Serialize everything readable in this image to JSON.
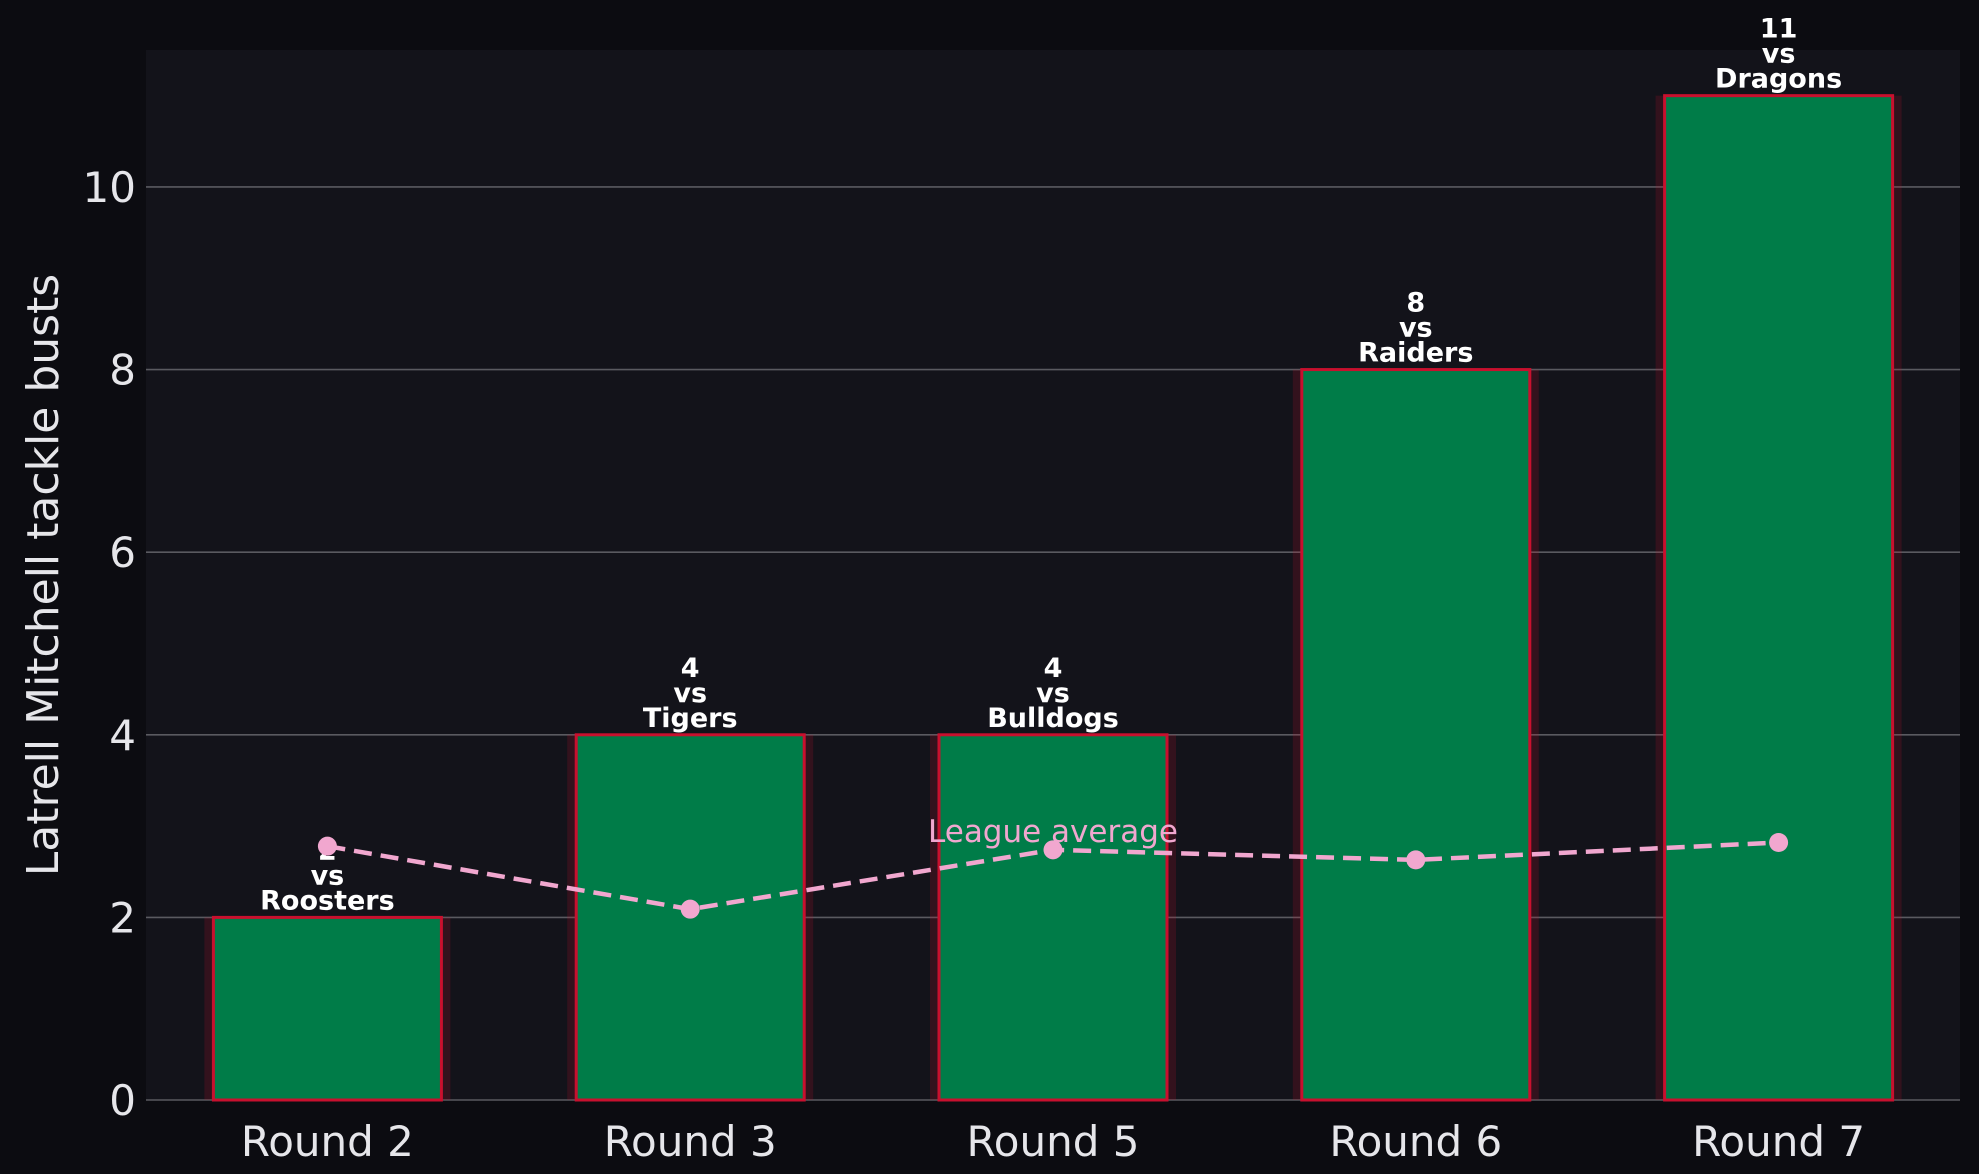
{
  "chart_data": {
    "type": "bar",
    "title": "",
    "xlabel": "",
    "ylabel": "Latrell Mitchell tackle busts",
    "categories": [
      "Round 2",
      "Round 3",
      "Round 5",
      "Round 6",
      "Round 7"
    ],
    "series": [
      {
        "type": "bar",
        "values": [
          2,
          4,
          4,
          8,
          11
        ],
        "labels": [
          "2\nvs\nRoosters",
          "4\nvs\nTigers",
          "4\nvs\nBulldogs",
          "8\nvs\nRaiders",
          "11\nvs\nDragons"
        ]
      },
      {
        "name": "League average",
        "type": "line",
        "style": "dashed",
        "values": [
          2.78,
          2.09,
          2.74,
          2.63,
          2.82
        ]
      }
    ],
    "ylim": [
      0,
      11.5
    ],
    "yticks": [
      0,
      2,
      4,
      6,
      8,
      10
    ],
    "grid": "horizontal",
    "colors": {
      "background": "#0c0c11",
      "plot_background": "#13131a",
      "bar_fill": "#007c48",
      "bar_edge": "#c8102e",
      "line": "#f1a7cf",
      "grid": "#5a5a60"
    }
  }
}
